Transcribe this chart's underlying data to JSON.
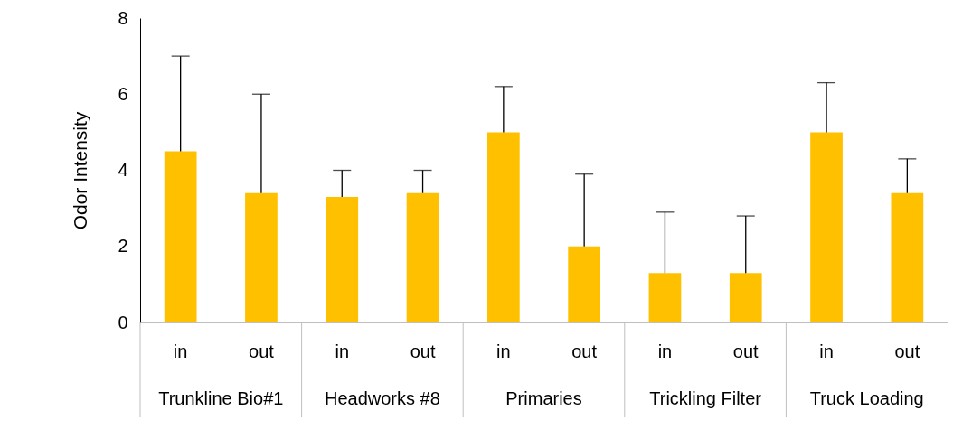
{
  "chart_data": {
    "type": "bar",
    "ylabel": "Odor Intensity",
    "categories": [
      "in",
      "out",
      "in",
      "out",
      "in",
      "out",
      "in",
      "out",
      "in",
      "out"
    ],
    "values": [
      4.5,
      3.4,
      3.3,
      3.4,
      5.0,
      2.0,
      1.3,
      1.3,
      5.0,
      3.4
    ],
    "errors": [
      [
        4.5,
        7.0
      ],
      [
        3.4,
        6.0
      ],
      [
        3.3,
        4.0
      ],
      [
        3.4,
        4.0
      ],
      [
        5.0,
        6.2
      ],
      [
        2.0,
        3.9
      ],
      [
        1.3,
        2.9
      ],
      [
        1.3,
        2.8
      ],
      [
        5.0,
        6.3
      ],
      [
        3.4,
        4.3
      ]
    ],
    "color": "#ffc000",
    "ylim": [
      0,
      8
    ],
    "yticks": [
      0,
      2,
      4,
      6,
      8
    ],
    "annotations": [
      "Trunkline Bio#1",
      "Headworks #8",
      "Primaries",
      "Trickling Filter",
      "Truck Loading"
    ]
  }
}
